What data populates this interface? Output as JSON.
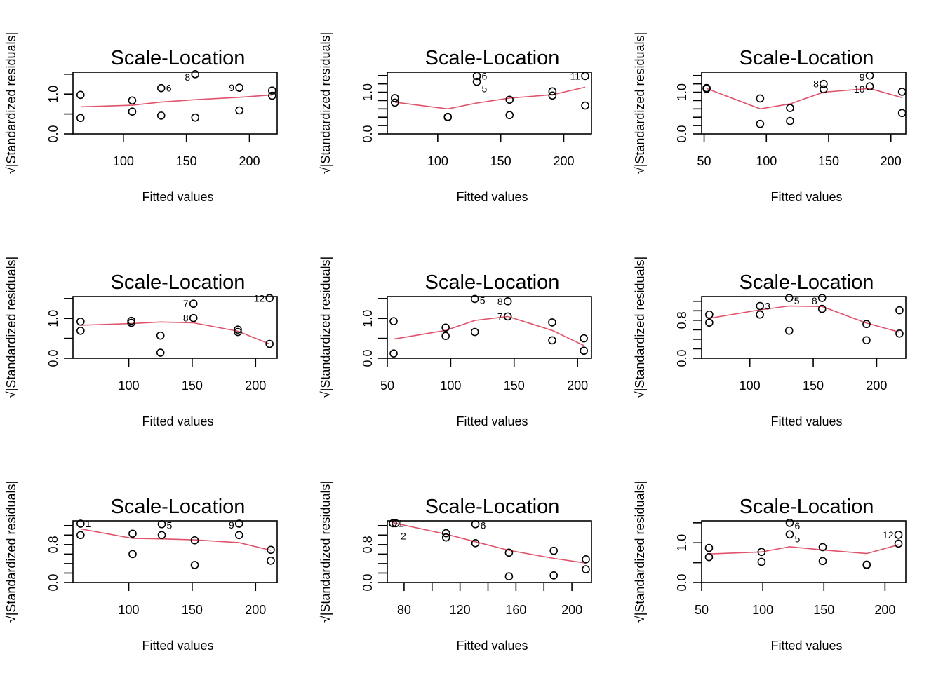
{
  "figure": {
    "layout": "3x3 grid of Scale-Location diagnostic plots",
    "loess_color": "#DF536B",
    "point_color": "#000000"
  },
  "chart_data": [
    {
      "type": "scatter",
      "title": "Scale-Location",
      "xlabel": "Fitted values",
      "ylabel": "√|Standardized residuals|",
      "xlim": [
        60,
        222
      ],
      "ylim": [
        0,
        1.55
      ],
      "xticks": [
        100,
        150,
        200
      ],
      "xtick_labels": [
        "100",
        "150",
        "200"
      ],
      "yticks": [
        0,
        0.5,
        1.0,
        1.5
      ],
      "ytick_labels": [
        "0.0",
        "",
        "1.0",
        ""
      ],
      "points": [
        {
          "x": 66,
          "y": 0.98
        },
        {
          "x": 66,
          "y": 0.4
        },
        {
          "x": 107,
          "y": 0.84
        },
        {
          "x": 107,
          "y": 0.56
        },
        {
          "x": 130,
          "y": 1.15,
          "label": "6"
        },
        {
          "x": 130,
          "y": 0.46
        },
        {
          "x": 157,
          "y": 1.5,
          "label": "8"
        },
        {
          "x": 157,
          "y": 0.41
        },
        {
          "x": 192,
          "y": 1.16,
          "label": "9"
        },
        {
          "x": 192,
          "y": 0.59
        },
        {
          "x": 218,
          "y": 1.09
        },
        {
          "x": 218,
          "y": 0.96
        }
      ],
      "smooth": {
        "x": [
          66,
          107,
          130,
          157,
          192,
          218
        ],
        "y": [
          0.68,
          0.72,
          0.8,
          0.86,
          0.92,
          0.98
        ]
      }
    },
    {
      "type": "scatter",
      "title": "Scale-Location",
      "xlabel": "Fitted values",
      "ylabel": "√|Standardized residuals|",
      "xlim": [
        60,
        222
      ],
      "ylim": [
        0,
        1.48
      ],
      "xticks": [
        100,
        150,
        200
      ],
      "xtick_labels": [
        "100",
        "150",
        "200"
      ],
      "yticks": [
        0,
        0.2,
        0.4,
        0.6,
        0.8,
        1.0,
        1.2,
        1.4
      ],
      "ytick_labels": [
        "0.0",
        "",
        "",
        "",
        "",
        "1.0",
        "",
        ""
      ],
      "points": [
        {
          "x": 66,
          "y": 0.86
        },
        {
          "x": 66,
          "y": 0.75
        },
        {
          "x": 108,
          "y": 0.41
        },
        {
          "x": 108,
          "y": 0.4
        },
        {
          "x": 131,
          "y": 1.39,
          "label": "6"
        },
        {
          "x": 131,
          "y": 1.25,
          "label": "5"
        },
        {
          "x": 157,
          "y": 0.82
        },
        {
          "x": 157,
          "y": 0.45
        },
        {
          "x": 191,
          "y": 1.02
        },
        {
          "x": 191,
          "y": 0.92
        },
        {
          "x": 217,
          "y": 1.39,
          "label": "11"
        },
        {
          "x": 217,
          "y": 0.68
        }
      ],
      "smooth": {
        "x": [
          66,
          108,
          131,
          157,
          191,
          217
        ],
        "y": [
          0.76,
          0.6,
          0.74,
          0.86,
          0.94,
          1.12
        ]
      }
    },
    {
      "type": "scatter",
      "title": "Scale-Location",
      "xlabel": "Fitted values",
      "ylabel": "√|Standardized residuals|",
      "xlim": [
        48,
        212
      ],
      "ylim": [
        0,
        1.48
      ],
      "xticks": [
        50,
        100,
        150,
        200
      ],
      "xtick_labels": [
        "50",
        "100",
        "150",
        "200"
      ],
      "yticks": [
        0,
        0.2,
        0.4,
        0.6,
        0.8,
        1.0,
        1.2,
        1.4
      ],
      "ytick_labels": [
        "0.0",
        "",
        "",
        "",
        "",
        "1.0",
        "",
        ""
      ],
      "points": [
        {
          "x": 52,
          "y": 1.1
        },
        {
          "x": 52,
          "y": 1.08
        },
        {
          "x": 95,
          "y": 0.85
        },
        {
          "x": 95,
          "y": 0.24
        },
        {
          "x": 119,
          "y": 0.62
        },
        {
          "x": 119,
          "y": 0.31
        },
        {
          "x": 146,
          "y": 1.2,
          "label": "8"
        },
        {
          "x": 146,
          "y": 1.07
        },
        {
          "x": 183,
          "y": 1.4,
          "label": "9"
        },
        {
          "x": 183,
          "y": 1.14,
          "label": "10"
        },
        {
          "x": 209,
          "y": 1.01
        },
        {
          "x": 209,
          "y": 0.5
        }
      ],
      "smooth": {
        "x": [
          52,
          95,
          119,
          146,
          183,
          209
        ],
        "y": [
          1.09,
          0.6,
          0.72,
          1.0,
          1.09,
          0.87
        ]
      }
    },
    {
      "type": "scatter",
      "title": "Scale-Location",
      "xlabel": "Fitted values",
      "ylabel": "√|Standardized residuals|",
      "xlim": [
        56,
        217
      ],
      "ylim": [
        0,
        1.55
      ],
      "xticks": [
        100,
        150,
        200
      ],
      "xtick_labels": [
        "100",
        "150",
        "200"
      ],
      "yticks": [
        0,
        0.5,
        1.0,
        1.5
      ],
      "ytick_labels": [
        "0.0",
        "",
        "1.0",
        ""
      ],
      "points": [
        {
          "x": 62,
          "y": 0.92
        },
        {
          "x": 62,
          "y": 0.69
        },
        {
          "x": 102,
          "y": 0.94
        },
        {
          "x": 102,
          "y": 0.89
        },
        {
          "x": 125,
          "y": 0.57
        },
        {
          "x": 125,
          "y": 0.14
        },
        {
          "x": 151,
          "y": 1.37,
          "label": "7"
        },
        {
          "x": 151,
          "y": 1.01,
          "label": "8"
        },
        {
          "x": 186,
          "y": 0.72
        },
        {
          "x": 186,
          "y": 0.66
        },
        {
          "x": 211,
          "y": 1.51,
          "label": "12"
        },
        {
          "x": 211,
          "y": 0.36
        }
      ],
      "smooth": {
        "x": [
          62,
          102,
          125,
          151,
          186,
          211
        ],
        "y": [
          0.83,
          0.87,
          0.91,
          0.89,
          0.68,
          0.36
        ]
      }
    },
    {
      "type": "scatter",
      "title": "Scale-Location",
      "xlabel": "Fitted values",
      "ylabel": "√|Standardized residuals|",
      "xlim": [
        50,
        211
      ],
      "ylim": [
        0,
        1.55
      ],
      "xticks": [
        50,
        100,
        150,
        200
      ],
      "xtick_labels": [
        "50",
        "100",
        "150",
        "200"
      ],
      "yticks": [
        0,
        0.5,
        1.0,
        1.5
      ],
      "ytick_labels": [
        "0.0",
        "",
        "1.0",
        ""
      ],
      "points": [
        {
          "x": 55,
          "y": 0.93
        },
        {
          "x": 55,
          "y": 0.12
        },
        {
          "x": 96,
          "y": 0.77
        },
        {
          "x": 96,
          "y": 0.56
        },
        {
          "x": 119,
          "y": 1.49,
          "label": "5"
        },
        {
          "x": 119,
          "y": 0.66
        },
        {
          "x": 145,
          "y": 1.43,
          "label": "8"
        },
        {
          "x": 145,
          "y": 1.05,
          "label": "7"
        },
        {
          "x": 180,
          "y": 0.9
        },
        {
          "x": 180,
          "y": 0.45
        },
        {
          "x": 205,
          "y": 0.5
        },
        {
          "x": 205,
          "y": 0.19
        }
      ],
      "smooth": {
        "x": [
          55,
          96,
          119,
          145,
          180,
          205
        ],
        "y": [
          0.48,
          0.7,
          0.95,
          1.05,
          0.7,
          0.32
        ]
      }
    },
    {
      "type": "scatter",
      "title": "Scale-Location",
      "xlabel": "Fitted values",
      "ylabel": "√|Standardized residuals|",
      "xlim": [
        62,
        223
      ],
      "ylim": [
        0,
        1.3
      ],
      "xticks": [
        100,
        150,
        200
      ],
      "xtick_labels": [
        "100",
        "150",
        "200"
      ],
      "yticks": [
        0,
        0.2,
        0.4,
        0.6,
        0.8,
        1.0,
        1.2
      ],
      "ytick_labels": [
        "0.0",
        "",
        "",
        "",
        "0.8",
        "",
        ""
      ],
      "points": [
        {
          "x": 68,
          "y": 0.92
        },
        {
          "x": 68,
          "y": 0.75
        },
        {
          "x": 108,
          "y": 1.1,
          "label": "3"
        },
        {
          "x": 108,
          "y": 0.92
        },
        {
          "x": 131,
          "y": 1.27,
          "label": "5"
        },
        {
          "x": 131,
          "y": 0.58
        },
        {
          "x": 157,
          "y": 1.27,
          "label": "8"
        },
        {
          "x": 157,
          "y": 1.04
        },
        {
          "x": 192,
          "y": 0.72
        },
        {
          "x": 192,
          "y": 0.38
        },
        {
          "x": 218,
          "y": 1.01
        },
        {
          "x": 218,
          "y": 0.52
        }
      ],
      "smooth": {
        "x": [
          68,
          108,
          131,
          157,
          192,
          218
        ],
        "y": [
          0.84,
          1.02,
          1.1,
          1.09,
          0.74,
          0.55
        ]
      }
    },
    {
      "type": "scatter",
      "title": "Scale-Location",
      "xlabel": "Fitted values",
      "ylabel": "√|Standardized residuals|",
      "xlim": [
        56,
        217
      ],
      "ylim": [
        0,
        1.3
      ],
      "xticks": [
        100,
        150,
        200
      ],
      "xtick_labels": [
        "100",
        "150",
        "200"
      ],
      "yticks": [
        0,
        0.2,
        0.4,
        0.6,
        0.8,
        1.0,
        1.2
      ],
      "ytick_labels": [
        "0.0",
        "",
        "",
        "",
        "0.8",
        "",
        ""
      ],
      "points": [
        {
          "x": 62,
          "y": 1.24,
          "label": "1"
        },
        {
          "x": 62,
          "y": 1.0
        },
        {
          "x": 103,
          "y": 1.03
        },
        {
          "x": 103,
          "y": 0.6
        },
        {
          "x": 126,
          "y": 1.23,
          "label": "5"
        },
        {
          "x": 126,
          "y": 1.0
        },
        {
          "x": 152,
          "y": 0.89
        },
        {
          "x": 152,
          "y": 0.37
        },
        {
          "x": 187,
          "y": 1.24,
          "label": "9"
        },
        {
          "x": 187,
          "y": 1.0
        },
        {
          "x": 212,
          "y": 0.69
        },
        {
          "x": 212,
          "y": 0.46
        }
      ],
      "smooth": {
        "x": [
          62,
          103,
          126,
          152,
          187,
          212
        ],
        "y": [
          1.13,
          0.93,
          0.92,
          0.9,
          0.84,
          0.68
        ]
      }
    },
    {
      "type": "scatter",
      "title": "Scale-Location",
      "xlabel": "Fitted values",
      "ylabel": "√|Standardized residuals|",
      "xlim": [
        68,
        214
      ],
      "ylim": [
        0,
        1.3
      ],
      "xticks": [
        80,
        100,
        120,
        140,
        160,
        180,
        200
      ],
      "xtick_labels": [
        "80",
        "",
        "120",
        "",
        "160",
        "",
        "200"
      ],
      "yticks": [
        0,
        0.2,
        0.4,
        0.6,
        0.8,
        1.0,
        1.2
      ],
      "ytick_labels": [
        "0.0",
        "",
        "",
        "",
        "0.8",
        "",
        ""
      ],
      "points": [
        {
          "x": 72,
          "y": 1.25,
          "label": "1"
        },
        {
          "x": 74,
          "y": 1.25,
          "label": "2"
        },
        {
          "x": 110,
          "y": 1.04
        },
        {
          "x": 110,
          "y": 0.95
        },
        {
          "x": 131,
          "y": 1.23,
          "label": "6"
        },
        {
          "x": 131,
          "y": 0.83
        },
        {
          "x": 155,
          "y": 0.63
        },
        {
          "x": 155,
          "y": 0.13
        },
        {
          "x": 187,
          "y": 0.67
        },
        {
          "x": 187,
          "y": 0.15
        },
        {
          "x": 210,
          "y": 0.49
        },
        {
          "x": 210,
          "y": 0.28
        }
      ],
      "smooth": {
        "x": [
          72,
          110,
          131,
          155,
          187,
          210
        ],
        "y": [
          1.26,
          1.02,
          0.86,
          0.68,
          0.51,
          0.41
        ]
      }
    },
    {
      "type": "scatter",
      "title": "Scale-Location",
      "xlabel": "Fitted values",
      "ylabel": "√|Standardized residuals|",
      "xlim": [
        50,
        217
      ],
      "ylim": [
        0,
        1.55
      ],
      "xticks": [
        50,
        100,
        150,
        200
      ],
      "xtick_labels": [
        "50",
        "100",
        "150",
        "200"
      ],
      "yticks": [
        0,
        0.5,
        1.0,
        1.5
      ],
      "ytick_labels": [
        "0.0",
        "",
        "1.0",
        ""
      ],
      "points": [
        {
          "x": 56,
          "y": 0.87
        },
        {
          "x": 56,
          "y": 0.64
        },
        {
          "x": 99,
          "y": 0.77
        },
        {
          "x": 99,
          "y": 0.52
        },
        {
          "x": 122,
          "y": 1.5,
          "label": "6"
        },
        {
          "x": 122,
          "y": 1.21,
          "label": "5"
        },
        {
          "x": 149,
          "y": 0.89
        },
        {
          "x": 149,
          "y": 0.54
        },
        {
          "x": 185,
          "y": 0.45
        },
        {
          "x": 185,
          "y": 0.44
        },
        {
          "x": 211,
          "y": 1.2,
          "label": "12"
        },
        {
          "x": 211,
          "y": 0.98
        }
      ],
      "smooth": {
        "x": [
          56,
          99,
          122,
          149,
          185,
          211
        ],
        "y": [
          0.72,
          0.77,
          0.9,
          0.82,
          0.73,
          0.95
        ]
      }
    }
  ]
}
